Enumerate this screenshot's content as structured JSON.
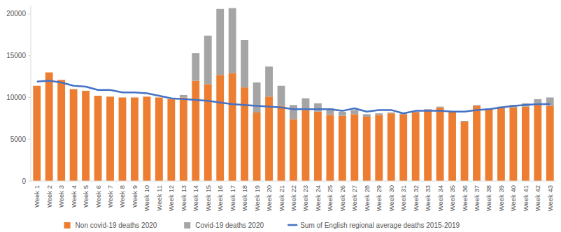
{
  "chart_data": {
    "type": "bar",
    "stacked": true,
    "grid": false,
    "legend": "bottom",
    "categories": [
      "Week 1",
      "Week 2",
      "Week 3",
      "Week 4",
      "Week 5",
      "Week 6",
      "Week 7",
      "Week 8",
      "Week 9",
      "Week 10",
      "Week 11",
      "Week 12",
      "Week 13",
      "Week 14",
      "Week 15",
      "Week 16",
      "Week 17",
      "Week 18",
      "Week 19",
      "Week 20",
      "Week 21",
      "Week 22",
      "Week 23",
      "Week 24",
      "Week 25",
      "Week 26",
      "Week 27",
      "Week 28",
      "Week 29",
      "Week 30",
      "Week 31",
      "Week 32",
      "Week 33",
      "Week 34",
      "Week 35",
      "Week 36",
      "Week 37",
      "Week 38",
      "Week 39",
      "Week 40",
      "Week 41",
      "Week 42",
      "Week 43"
    ],
    "ylim": [
      0,
      21000
    ],
    "yticks": [
      0,
      5000,
      10000,
      15000,
      20000
    ],
    "series": [
      {
        "name": "Non covid-19 deaths 2020",
        "type": "bar",
        "color": "#ed7d31",
        "values": [
          11400,
          13000,
          12100,
          11000,
          10800,
          10200,
          10100,
          10000,
          10000,
          10100,
          10000,
          9800,
          10000,
          12000,
          11600,
          12700,
          12900,
          11200,
          8200,
          10100,
          9000,
          7400,
          8500,
          8300,
          7900,
          7800,
          8000,
          7700,
          7900,
          8100,
          8000,
          8200,
          8500,
          8800,
          8200,
          7100,
          9000,
          8600,
          8700,
          8800,
          8900,
          9300,
          9000
        ]
      },
      {
        "name": "Covid-19 deaths 2020",
        "type": "bar",
        "color": "#a5a5a5",
        "values": [
          0,
          0,
          0,
          0,
          0,
          0,
          0,
          0,
          0,
          0,
          0,
          0,
          300,
          3300,
          5800,
          7900,
          7800,
          5700,
          3600,
          3600,
          2400,
          1700,
          1400,
          1000,
          800,
          500,
          500,
          300,
          200,
          100,
          100,
          100,
          100,
          100,
          100,
          100,
          100,
          100,
          200,
          300,
          400,
          500,
          1000
        ]
      },
      {
        "name": "Sum of English regional average deaths 2015-2019",
        "type": "line",
        "color": "#4472c4",
        "values": [
          11900,
          12000,
          11800,
          11400,
          11300,
          10900,
          10900,
          10600,
          10600,
          10500,
          10200,
          9900,
          9800,
          9700,
          9600,
          9400,
          9200,
          9100,
          9000,
          8900,
          8800,
          8600,
          8600,
          8600,
          8600,
          8400,
          8700,
          8300,
          8500,
          8500,
          8100,
          8400,
          8400,
          8400,
          8300,
          8300,
          8500,
          8600,
          8800,
          9000,
          9100,
          9200,
          9200
        ]
      }
    ]
  }
}
